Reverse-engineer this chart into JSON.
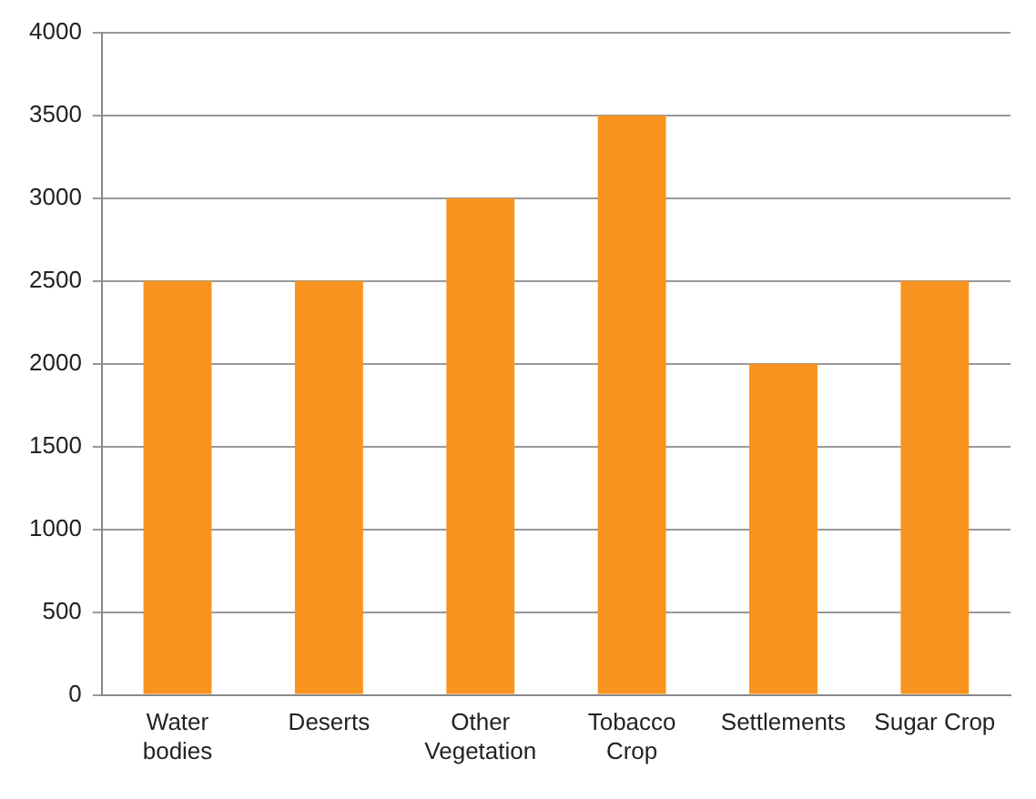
{
  "chart_data": {
    "type": "bar",
    "categories": [
      "Water bodies",
      "Deserts",
      "Other Vegetation",
      "Tobacco Crop",
      "Settlements",
      "Sugar Crop"
    ],
    "values": [
      2500,
      2500,
      3000,
      3500,
      2000,
      2500
    ],
    "color": "#f7931e",
    "ylim": [
      0,
      4000
    ],
    "yticks": [
      0,
      500,
      1000,
      1500,
      2000,
      2500,
      3000,
      3500,
      4000
    ],
    "grid": "y",
    "legend": false
  }
}
